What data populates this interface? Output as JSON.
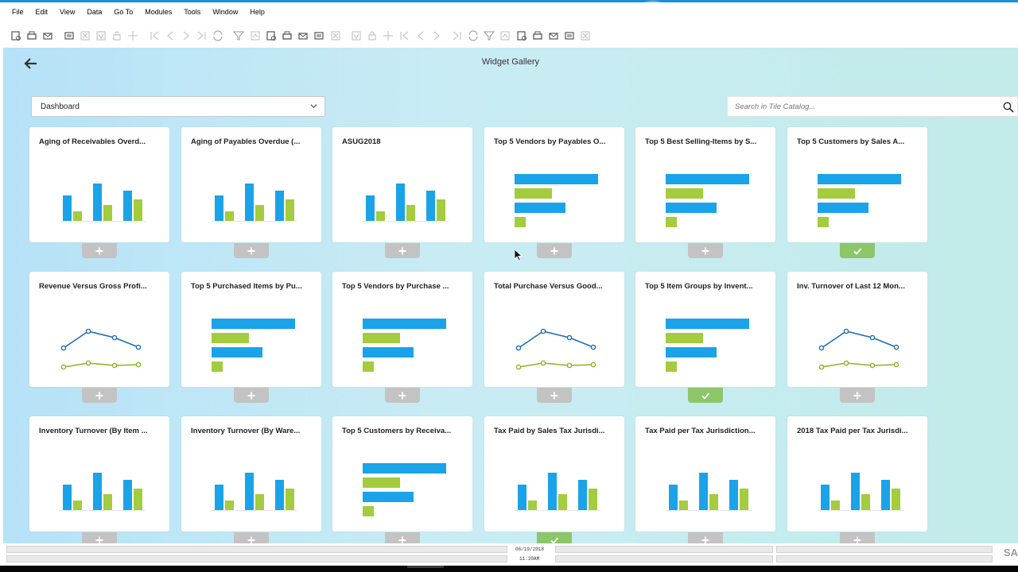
{
  "menu": [
    "File",
    "Edit",
    "View",
    "Data",
    "Go To",
    "Modules",
    "Tools",
    "Window",
    "Help"
  ],
  "toolbar_icons": [
    "find-icon",
    "print-icon",
    "email-icon",
    "print-preview-icon",
    "export-excel-icon",
    "export-word-icon",
    "lock-icon",
    "move-icon",
    "first-record-icon",
    "previous-record-icon",
    "next-record-icon",
    "last-record-icon",
    "refresh-icon",
    "filter-icon",
    "sort-icon",
    "base-document-icon",
    "target-document-icon",
    "journal-icon",
    "payment-icon",
    "settings-icon",
    "layout-icon",
    "gross-profit-icon",
    "properties-icon",
    "copy-icon",
    "message-icon",
    "alert-icon",
    "calendar-icon",
    "queue-icon",
    "calculator-icon",
    "user-icon",
    "report-icon",
    "import-icon",
    "link-icon",
    "launch-icon",
    "help-icon"
  ],
  "gallery": {
    "title": "Widget Gallery",
    "dropdown_value": "Dashboard",
    "search_placeholder": "Search in Tile Catalog..."
  },
  "tiles": [
    {
      "title": "Aging of Receivables Overd...",
      "chart": "bar",
      "status": "add"
    },
    {
      "title": "Aging of Payables Overdue (...",
      "chart": "bar",
      "status": "add"
    },
    {
      "title": "ASUG2018",
      "chart": "bar",
      "status": "add"
    },
    {
      "title": "Top 5 Vendors by Payables O...",
      "chart": "hbar",
      "status": "add"
    },
    {
      "title": "Top 5 Best Selling-Items by S...",
      "chart": "hbar",
      "status": "add"
    },
    {
      "title": "Top 5 Customers by Sales A...",
      "chart": "hbar",
      "status": "added"
    },
    {
      "title": "Revenue Versus Gross Profi...",
      "chart": "line",
      "status": "add"
    },
    {
      "title": "Top 5 Purchased Items by Pu...",
      "chart": "hbar",
      "status": "add"
    },
    {
      "title": "Top 5 Vendors by Purchase ...",
      "chart": "hbar",
      "status": "add"
    },
    {
      "title": "Total Purchase Versus Good...",
      "chart": "line",
      "status": "add"
    },
    {
      "title": "Top 5 Item Groups by Invent...",
      "chart": "hbar",
      "status": "added"
    },
    {
      "title": "Inv. Turnover of Last 12 Mon...",
      "chart": "line",
      "status": "add"
    },
    {
      "title": "Inventory Turnover (By Item ...",
      "chart": "bar",
      "status": "add"
    },
    {
      "title": "Inventory Turnover (By Ware...",
      "chart": "bar",
      "status": "add"
    },
    {
      "title": "Top 5 Customers by Receiva...",
      "chart": "hbar",
      "status": "add"
    },
    {
      "title": "Tax Paid by Sales Tax Jurisdi...",
      "chart": "bar",
      "status": "added"
    },
    {
      "title": "Tax Paid per Tax Jurisdiction...",
      "chart": "bar",
      "status": "add"
    },
    {
      "title": "2018 Tax Paid per Tax Jurisdi...",
      "chart": "bar",
      "status": "add"
    }
  ],
  "status_bar": {
    "date": "06/19/2018",
    "time": "11:30AM",
    "logo": "SA"
  },
  "colors": {
    "accent_blue": "#1aa3e8",
    "accent_green": "#a3cc3e",
    "line_blue": "#1f6fb4",
    "line_green": "#8ab523",
    "added_green": "#8cc56a",
    "add_gray": "#c3c3c3"
  }
}
